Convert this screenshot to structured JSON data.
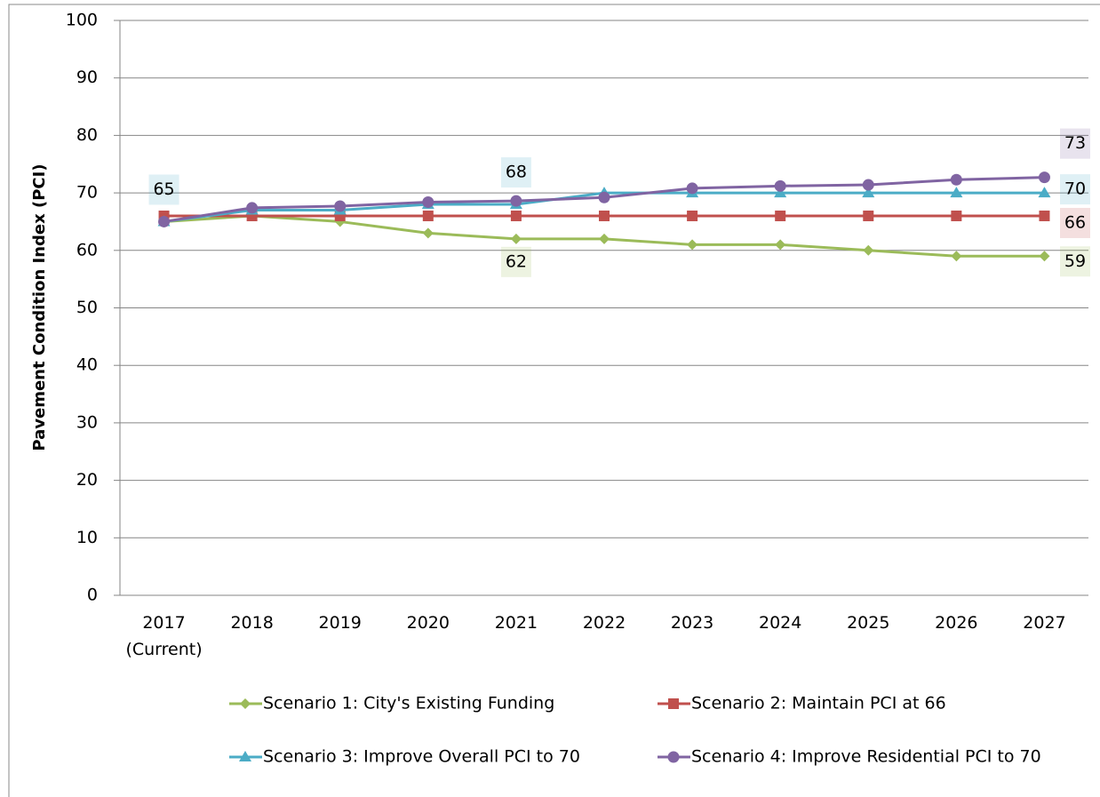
{
  "chart_data": {
    "type": "line",
    "y_label": "Pavement Condition Index (PCI)",
    "categories": [
      "2017\n(Current)",
      "2018",
      "2019",
      "2020",
      "2021",
      "2022",
      "2023",
      "2024",
      "2025",
      "2026",
      "2027"
    ],
    "series": [
      {
        "name": "Scenario 1: City's Existing Funding",
        "color": "#9bbb59",
        "marker": "diamond",
        "values": [
          65,
          66,
          65,
          63,
          62,
          62,
          61,
          61,
          60,
          59,
          59
        ],
        "value_labels": [
          null,
          null,
          null,
          null,
          "62",
          null,
          null,
          null,
          null,
          null,
          "59"
        ]
      },
      {
        "name": "Scenario 2: Maintain PCI at 66",
        "color": "#c0504d",
        "marker": "square",
        "values": [
          66,
          66,
          66,
          66,
          66,
          66,
          66,
          66,
          66,
          66,
          66
        ],
        "value_labels": [
          null,
          null,
          null,
          null,
          null,
          null,
          null,
          null,
          null,
          null,
          "66"
        ]
      },
      {
        "name": "Scenario 3: Improve Overall PCI to 70",
        "color": "#4bacc6",
        "marker": "triangle",
        "values": [
          65,
          67,
          67,
          68,
          68,
          70,
          70,
          70,
          70,
          70,
          70
        ],
        "value_labels": [
          "65",
          null,
          null,
          null,
          "68",
          null,
          null,
          null,
          null,
          null,
          "70"
        ]
      },
      {
        "name": "Scenario 4: Improve Residential PCI to 70",
        "color": "#8064a2",
        "marker": "circle",
        "values": [
          65,
          67.4,
          67.7,
          68.4,
          68.6,
          69.2,
          70.8,
          71.2,
          71.4,
          72.3,
          72.7
        ],
        "value_labels": [
          null,
          null,
          null,
          null,
          null,
          null,
          null,
          null,
          null,
          null,
          "73"
        ]
      }
    ],
    "ylim": [
      0,
      100
    ],
    "yticks": [
      0,
      10,
      20,
      30,
      40,
      50,
      60,
      70,
      80,
      90,
      100
    ],
    "grid": true,
    "legend": "bottom"
  }
}
